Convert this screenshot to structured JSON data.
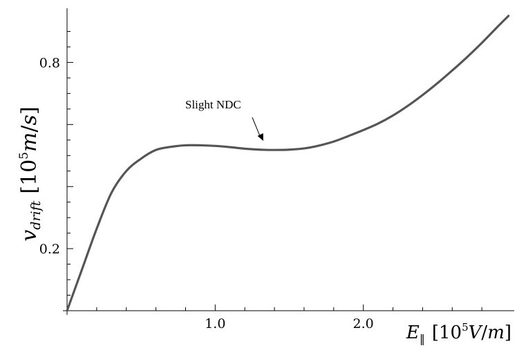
{
  "chart_data": {
    "type": "line",
    "title": "",
    "xlabel": "E‖ [10⁵V/m]",
    "ylabel": "v_drift [10⁵m/s]",
    "xlim": [
      0,
      3.0
    ],
    "ylim": [
      0,
      0.95
    ],
    "x_ticks": [
      {
        "value": 1.0,
        "label": "1.0"
      },
      {
        "value": 2.0,
        "label": "2.0"
      }
    ],
    "y_ticks": [
      {
        "value": 0.2,
        "label": "0.2"
      },
      {
        "value": 0.8,
        "label": "0.8"
      }
    ],
    "series": [
      {
        "color": "#555555",
        "x": [
          0.0,
          0.1,
          0.2,
          0.3,
          0.4,
          0.5,
          0.6,
          0.7,
          0.8,
          0.9,
          1.0,
          1.1,
          1.2,
          1.3,
          1.4,
          1.5,
          1.6,
          1.7,
          1.8,
          1.9,
          2.0,
          2.1,
          2.2,
          2.3,
          2.4,
          2.5,
          2.6,
          2.7,
          2.8,
          2.9,
          2.98
        ],
        "y": [
          0.0,
          0.132,
          0.264,
          0.38,
          0.45,
          0.49,
          0.518,
          0.528,
          0.533,
          0.533,
          0.531,
          0.527,
          0.522,
          0.519,
          0.518,
          0.519,
          0.523,
          0.532,
          0.545,
          0.563,
          0.582,
          0.603,
          0.629,
          0.66,
          0.695,
          0.733,
          0.774,
          0.817,
          0.863,
          0.912,
          0.95
        ]
      }
    ],
    "annotations": [
      {
        "text": "Slight NDC",
        "x": 1.32,
        "y": 0.525
      }
    ]
  }
}
